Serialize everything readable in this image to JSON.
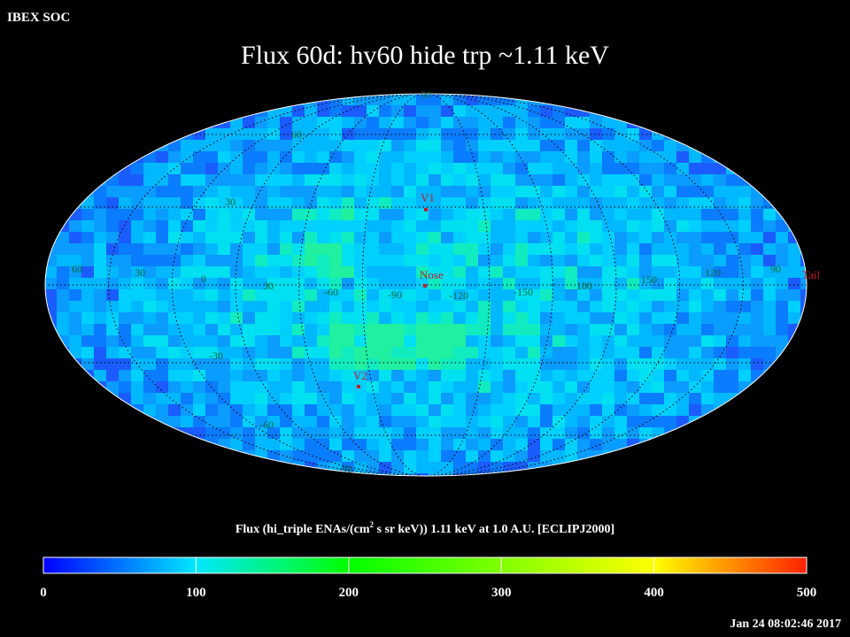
{
  "header": {
    "label": "IBEX SOC",
    "title": "Flux   60d: hv60 hide trp ~1.11 keV"
  },
  "map": {
    "grid_labels": [
      "90",
      "60",
      "30",
      "60",
      "30",
      "0",
      "30",
      "-60",
      "-90",
      "-120",
      "-150",
      "180",
      "150",
      "120",
      "90",
      "-30",
      "-60",
      "-90"
    ],
    "markers": [
      "V1",
      "Nose",
      "V2",
      "Tail"
    ]
  },
  "colorbar": {
    "caption": [
      "Flux (hi_triple ENAs/(cm",
      "2",
      " s sr keV))  1.11 keV at 1.0 A.U. [ECLIPJ2000]"
    ],
    "range": [
      0,
      500
    ],
    "ticks": [
      0,
      100,
      200,
      300,
      400,
      500
    ],
    "stops": [
      {
        "value": 0,
        "color": "#0000ff"
      },
      {
        "value": 100,
        "color": "#00e8ff"
      },
      {
        "value": 200,
        "color": "#00ff00"
      },
      {
        "value": 300,
        "color": "#80ff00"
      },
      {
        "value": 400,
        "color": "#ffff00"
      },
      {
        "value": 500,
        "color": "#ff2000"
      }
    ]
  },
  "footer": {
    "timestamp": "Jan 24 08:02:46 2017"
  }
}
